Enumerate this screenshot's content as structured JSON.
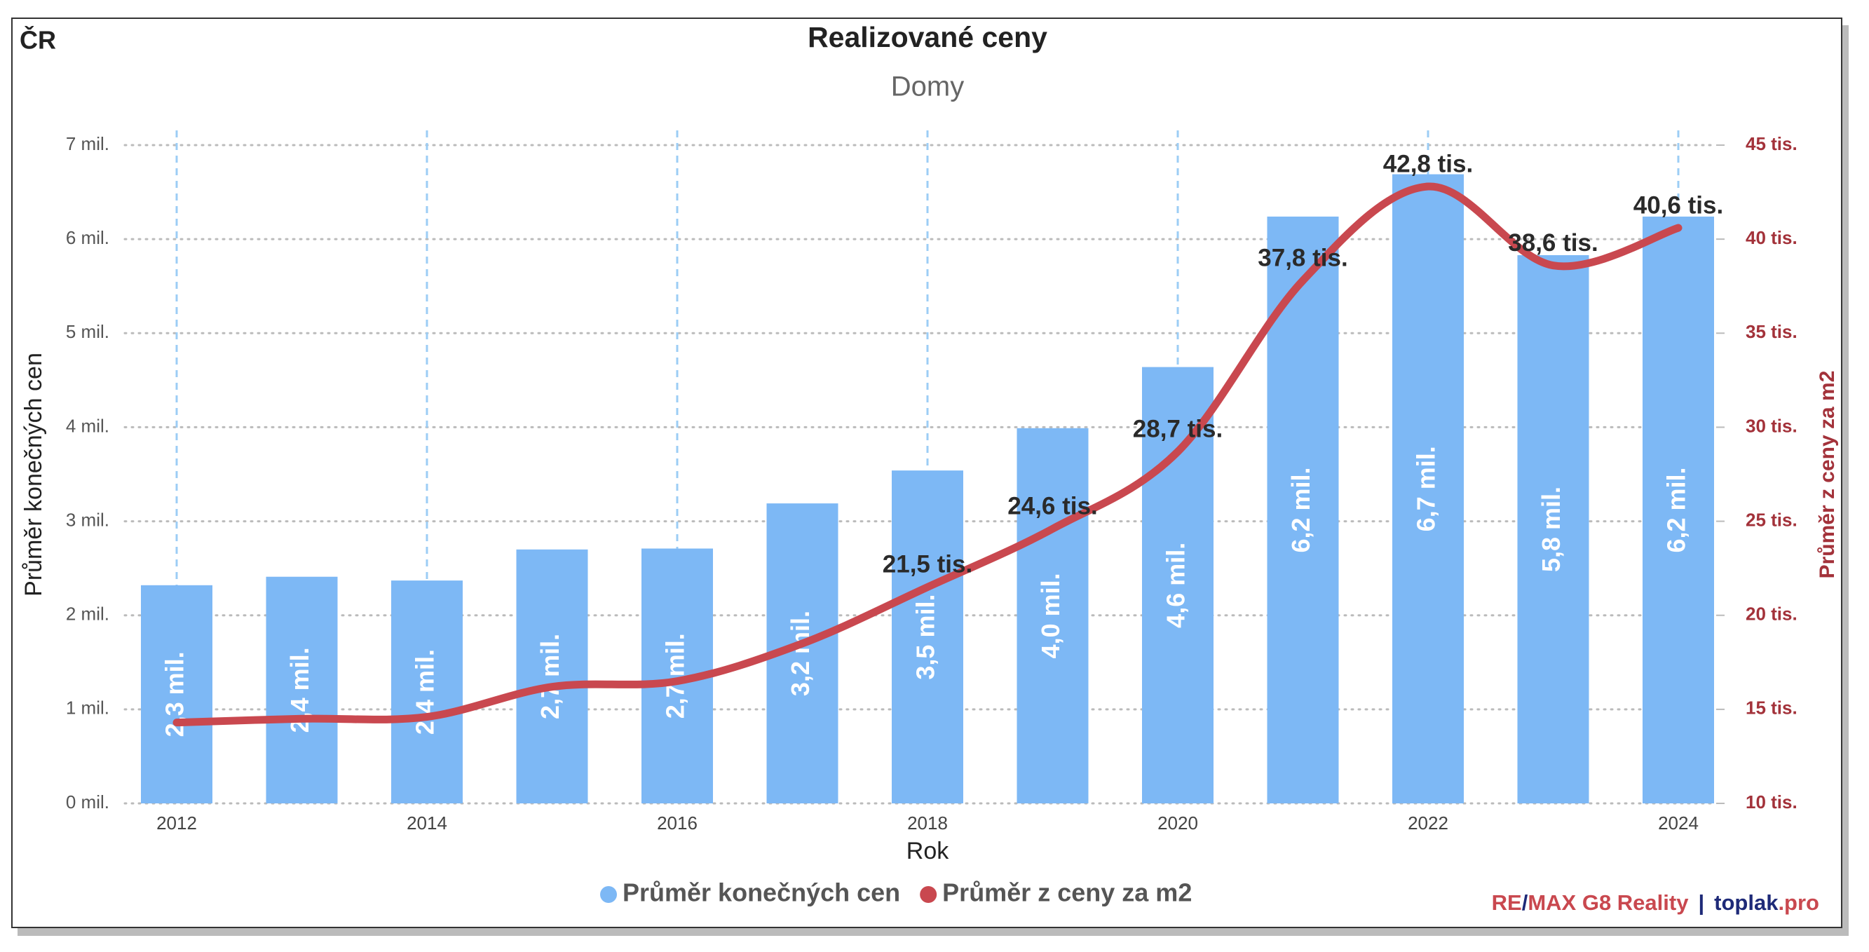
{
  "chart_data": {
    "type": "bar",
    "title": "Realizované ceny",
    "subtitle": "Domy",
    "region": "ČR",
    "x_label": "Rok",
    "y_label": "Průměr konečných cen",
    "y2_label": "Průměr z ceny za m2",
    "categories": [
      "2012",
      null,
      "2014",
      null,
      "2016",
      null,
      "2018",
      null,
      "2020",
      null,
      "2022",
      null,
      "2024"
    ],
    "series": [
      {
        "name": "Průměr konečných cen",
        "type": "bar",
        "color": "#7db8f5",
        "values": [
          2.32,
          2.41,
          2.37,
          2.7,
          2.71,
          3.19,
          3.54,
          3.99,
          4.64,
          6.24,
          6.69,
          5.83,
          6.24
        ],
        "value_labels": [
          "2,3 mil.",
          "2,4 mil.",
          "2,4 mil.",
          "2,7 mil.",
          "2,7 mil.",
          "3,2 mil.",
          "3,5 mil.",
          "4,0 mil.",
          "4,6 mil.",
          "6,2 mil.",
          "6,7 mil.",
          "5,8 mil.",
          "6,2 mil."
        ]
      },
      {
        "name": "Průměr z ceny za m2",
        "type": "line",
        "axis": "y2",
        "color": "#c9484f",
        "values": [
          14.3,
          14.5,
          14.6,
          16.2,
          16.5,
          18.5,
          21.5,
          24.6,
          28.7,
          37.8,
          42.8,
          38.6,
          40.6
        ],
        "value_labels": [
          null,
          null,
          null,
          null,
          null,
          null,
          "21,5 tis.",
          "24,6 tis.",
          "28,7 tis.",
          "37,8 tis.",
          "42,8 tis.",
          "38,6 tis.",
          "40,6 tis."
        ]
      }
    ],
    "ylim": [
      0,
      7
    ],
    "yticks": [
      {
        "value": 0,
        "label": "0 mil."
      },
      {
        "value": 1,
        "label": "1 mil."
      },
      {
        "value": 2,
        "label": "2 mil."
      },
      {
        "value": 3,
        "label": "3 mil."
      },
      {
        "value": 4,
        "label": "4 mil."
      },
      {
        "value": 5,
        "label": "5 mil."
      },
      {
        "value": 6,
        "label": "6 mil."
      },
      {
        "value": 7,
        "label": "7 mil."
      }
    ],
    "y2lim": [
      10,
      45
    ],
    "y2ticks": [
      {
        "value": 10,
        "label": "10 tis."
      },
      {
        "value": 15,
        "label": "15 tis."
      },
      {
        "value": 20,
        "label": "20 tis."
      },
      {
        "value": 25,
        "label": "25 tis."
      },
      {
        "value": 30,
        "label": "30 tis."
      },
      {
        "value": 35,
        "label": "35 tis."
      },
      {
        "value": 40,
        "label": "40 tis."
      },
      {
        "value": 45,
        "label": "45 tis."
      }
    ],
    "grid": true
  },
  "branding": {
    "agency_a": "RE",
    "slash": "/",
    "agency_b": "MAX G8 Reality",
    "separator": "|",
    "site": "toplak",
    "tld": ".pro"
  }
}
